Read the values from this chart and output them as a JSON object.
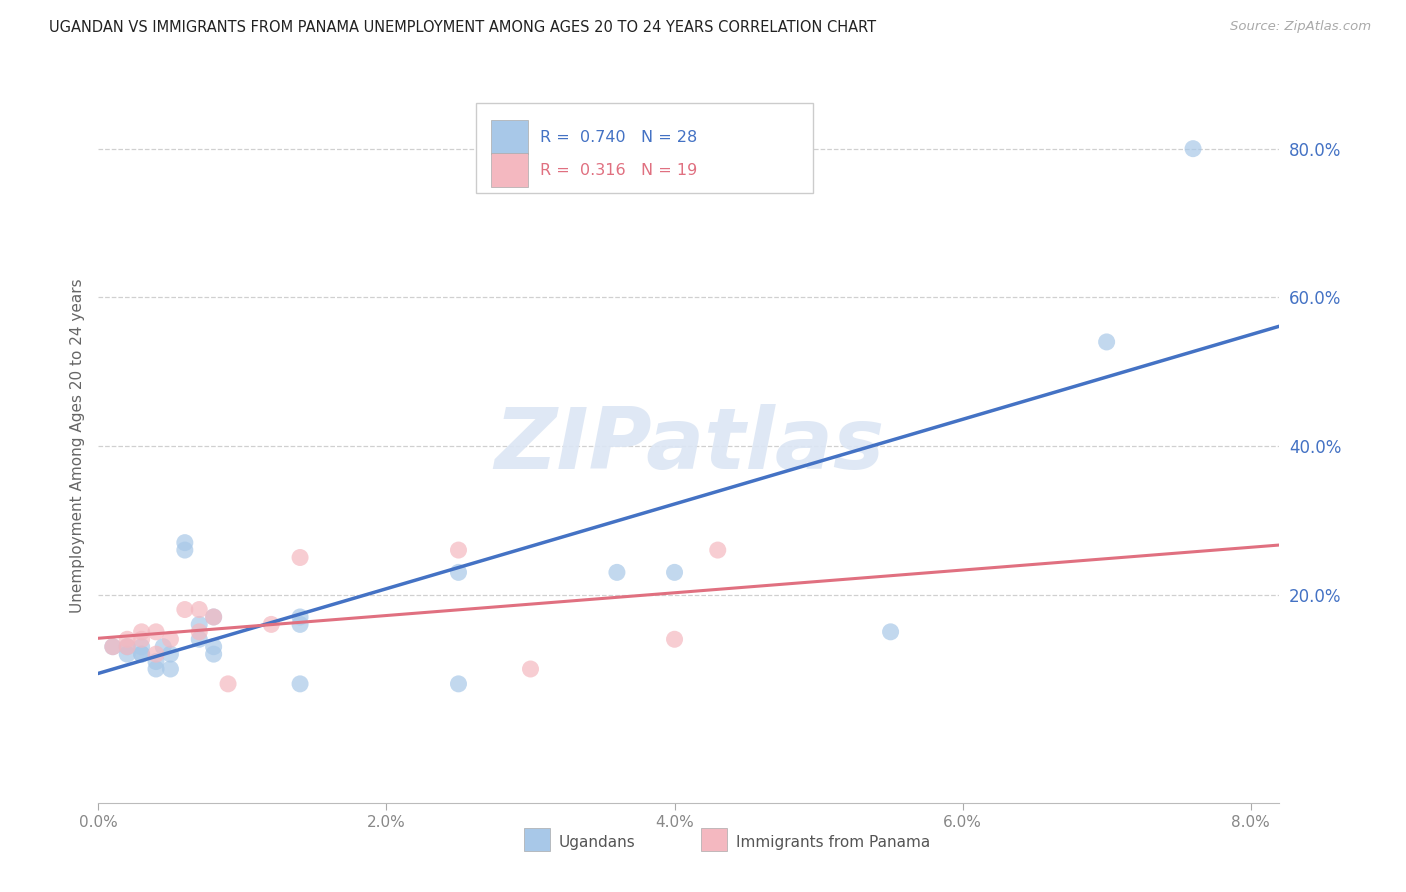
{
  "title": "UGANDAN VS IMMIGRANTS FROM PANAMA UNEMPLOYMENT AMONG AGES 20 TO 24 YEARS CORRELATION CHART",
  "source": "Source: ZipAtlas.com",
  "xlim": [
    0.0,
    0.082
  ],
  "ylim": [
    -0.08,
    0.88
  ],
  "xticks": [
    0.0,
    0.02,
    0.04,
    0.06,
    0.08
  ],
  "xtick_labels": [
    "0.0%",
    "2.0%",
    "4.0%",
    "6.0%",
    "8.0%"
  ],
  "yticks": [
    0.2,
    0.4,
    0.6,
    0.8
  ],
  "ytick_labels": [
    "20.0%",
    "40.0%",
    "60.0%",
    "80.0%"
  ],
  "ugandan_x": [
    0.001,
    0.002,
    0.002,
    0.003,
    0.003,
    0.003,
    0.004,
    0.004,
    0.0045,
    0.005,
    0.005,
    0.006,
    0.006,
    0.007,
    0.007,
    0.008,
    0.008,
    0.008,
    0.014,
    0.014,
    0.014,
    0.025,
    0.025,
    0.036,
    0.04,
    0.055,
    0.07,
    0.076
  ],
  "ugandan_y": [
    0.13,
    0.12,
    0.13,
    0.12,
    0.12,
    0.13,
    0.1,
    0.11,
    0.13,
    0.12,
    0.1,
    0.26,
    0.27,
    0.14,
    0.16,
    0.13,
    0.17,
    0.12,
    0.08,
    0.16,
    0.17,
    0.23,
    0.08,
    0.23,
    0.23,
    0.15,
    0.54,
    0.8
  ],
  "panama_x": [
    0.001,
    0.002,
    0.002,
    0.003,
    0.003,
    0.004,
    0.004,
    0.005,
    0.006,
    0.007,
    0.007,
    0.008,
    0.009,
    0.012,
    0.014,
    0.025,
    0.03,
    0.04,
    0.043
  ],
  "panama_y": [
    0.13,
    0.14,
    0.13,
    0.14,
    0.15,
    0.12,
    0.15,
    0.14,
    0.18,
    0.18,
    0.15,
    0.17,
    0.08,
    0.16,
    0.25,
    0.26,
    0.1,
    0.14,
    0.26
  ],
  "ugandan_scatter_color": "#a8c8e8",
  "panama_scatter_color": "#f4b8c0",
  "ugandan_line_color": "#4472c4",
  "panama_line_color": "#e07080",
  "r_ugandan": "0.740",
  "n_ugandan": "28",
  "r_panama": "0.316",
  "n_panama": "19",
  "ylabel": "Unemployment Among Ages 20 to 24 years",
  "watermark_text": "ZIPatlas",
  "watermark_color": "#dce6f4",
  "grid_color": "#d0d0d0",
  "background_color": "#ffffff",
  "right_tick_color": "#4472c4",
  "bottom_tick_color": "#888888",
  "legend_label_ugandan": "Ugandans",
  "legend_label_panama": "Immigrants from Panama"
}
